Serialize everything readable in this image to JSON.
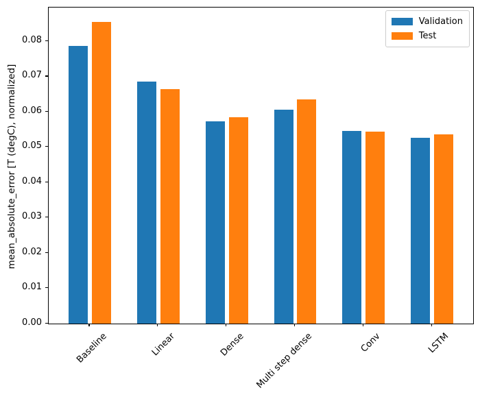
{
  "figure": {
    "background": "#ffffff",
    "spine_color": "#000000",
    "legend_border_color": "#cccccc"
  },
  "chart_data": {
    "type": "bar",
    "title": "",
    "xlabel": "",
    "ylabel": "mean_absolute_error [T (degC), normalized]",
    "categories": [
      "Baseline",
      "Linear",
      "Dense",
      "Multi step dense",
      "Conv",
      "LSTM"
    ],
    "series": [
      {
        "name": "Validation",
        "color": "#1f77b4",
        "values": [
          0.0787,
          0.0687,
          0.0573,
          0.0606,
          0.0546,
          0.0527
        ]
      },
      {
        "name": "Test",
        "color": "#ff7f0e",
        "values": [
          0.0855,
          0.0664,
          0.0585,
          0.0635,
          0.0544,
          0.0536
        ]
      }
    ],
    "yticks": [
      0.0,
      0.01,
      0.02,
      0.03,
      0.04,
      0.05,
      0.06,
      0.07,
      0.08
    ],
    "ytick_decimals": 2,
    "ylim": [
      0,
      0.0896
    ],
    "xlim": [
      -0.6,
      5.6
    ],
    "bar_width": 0.28,
    "bar_offset": 0.17,
    "xtick_rotation": 45,
    "grid": false,
    "legend": {
      "position": "upper right",
      "entries": [
        "Validation",
        "Test"
      ]
    }
  }
}
